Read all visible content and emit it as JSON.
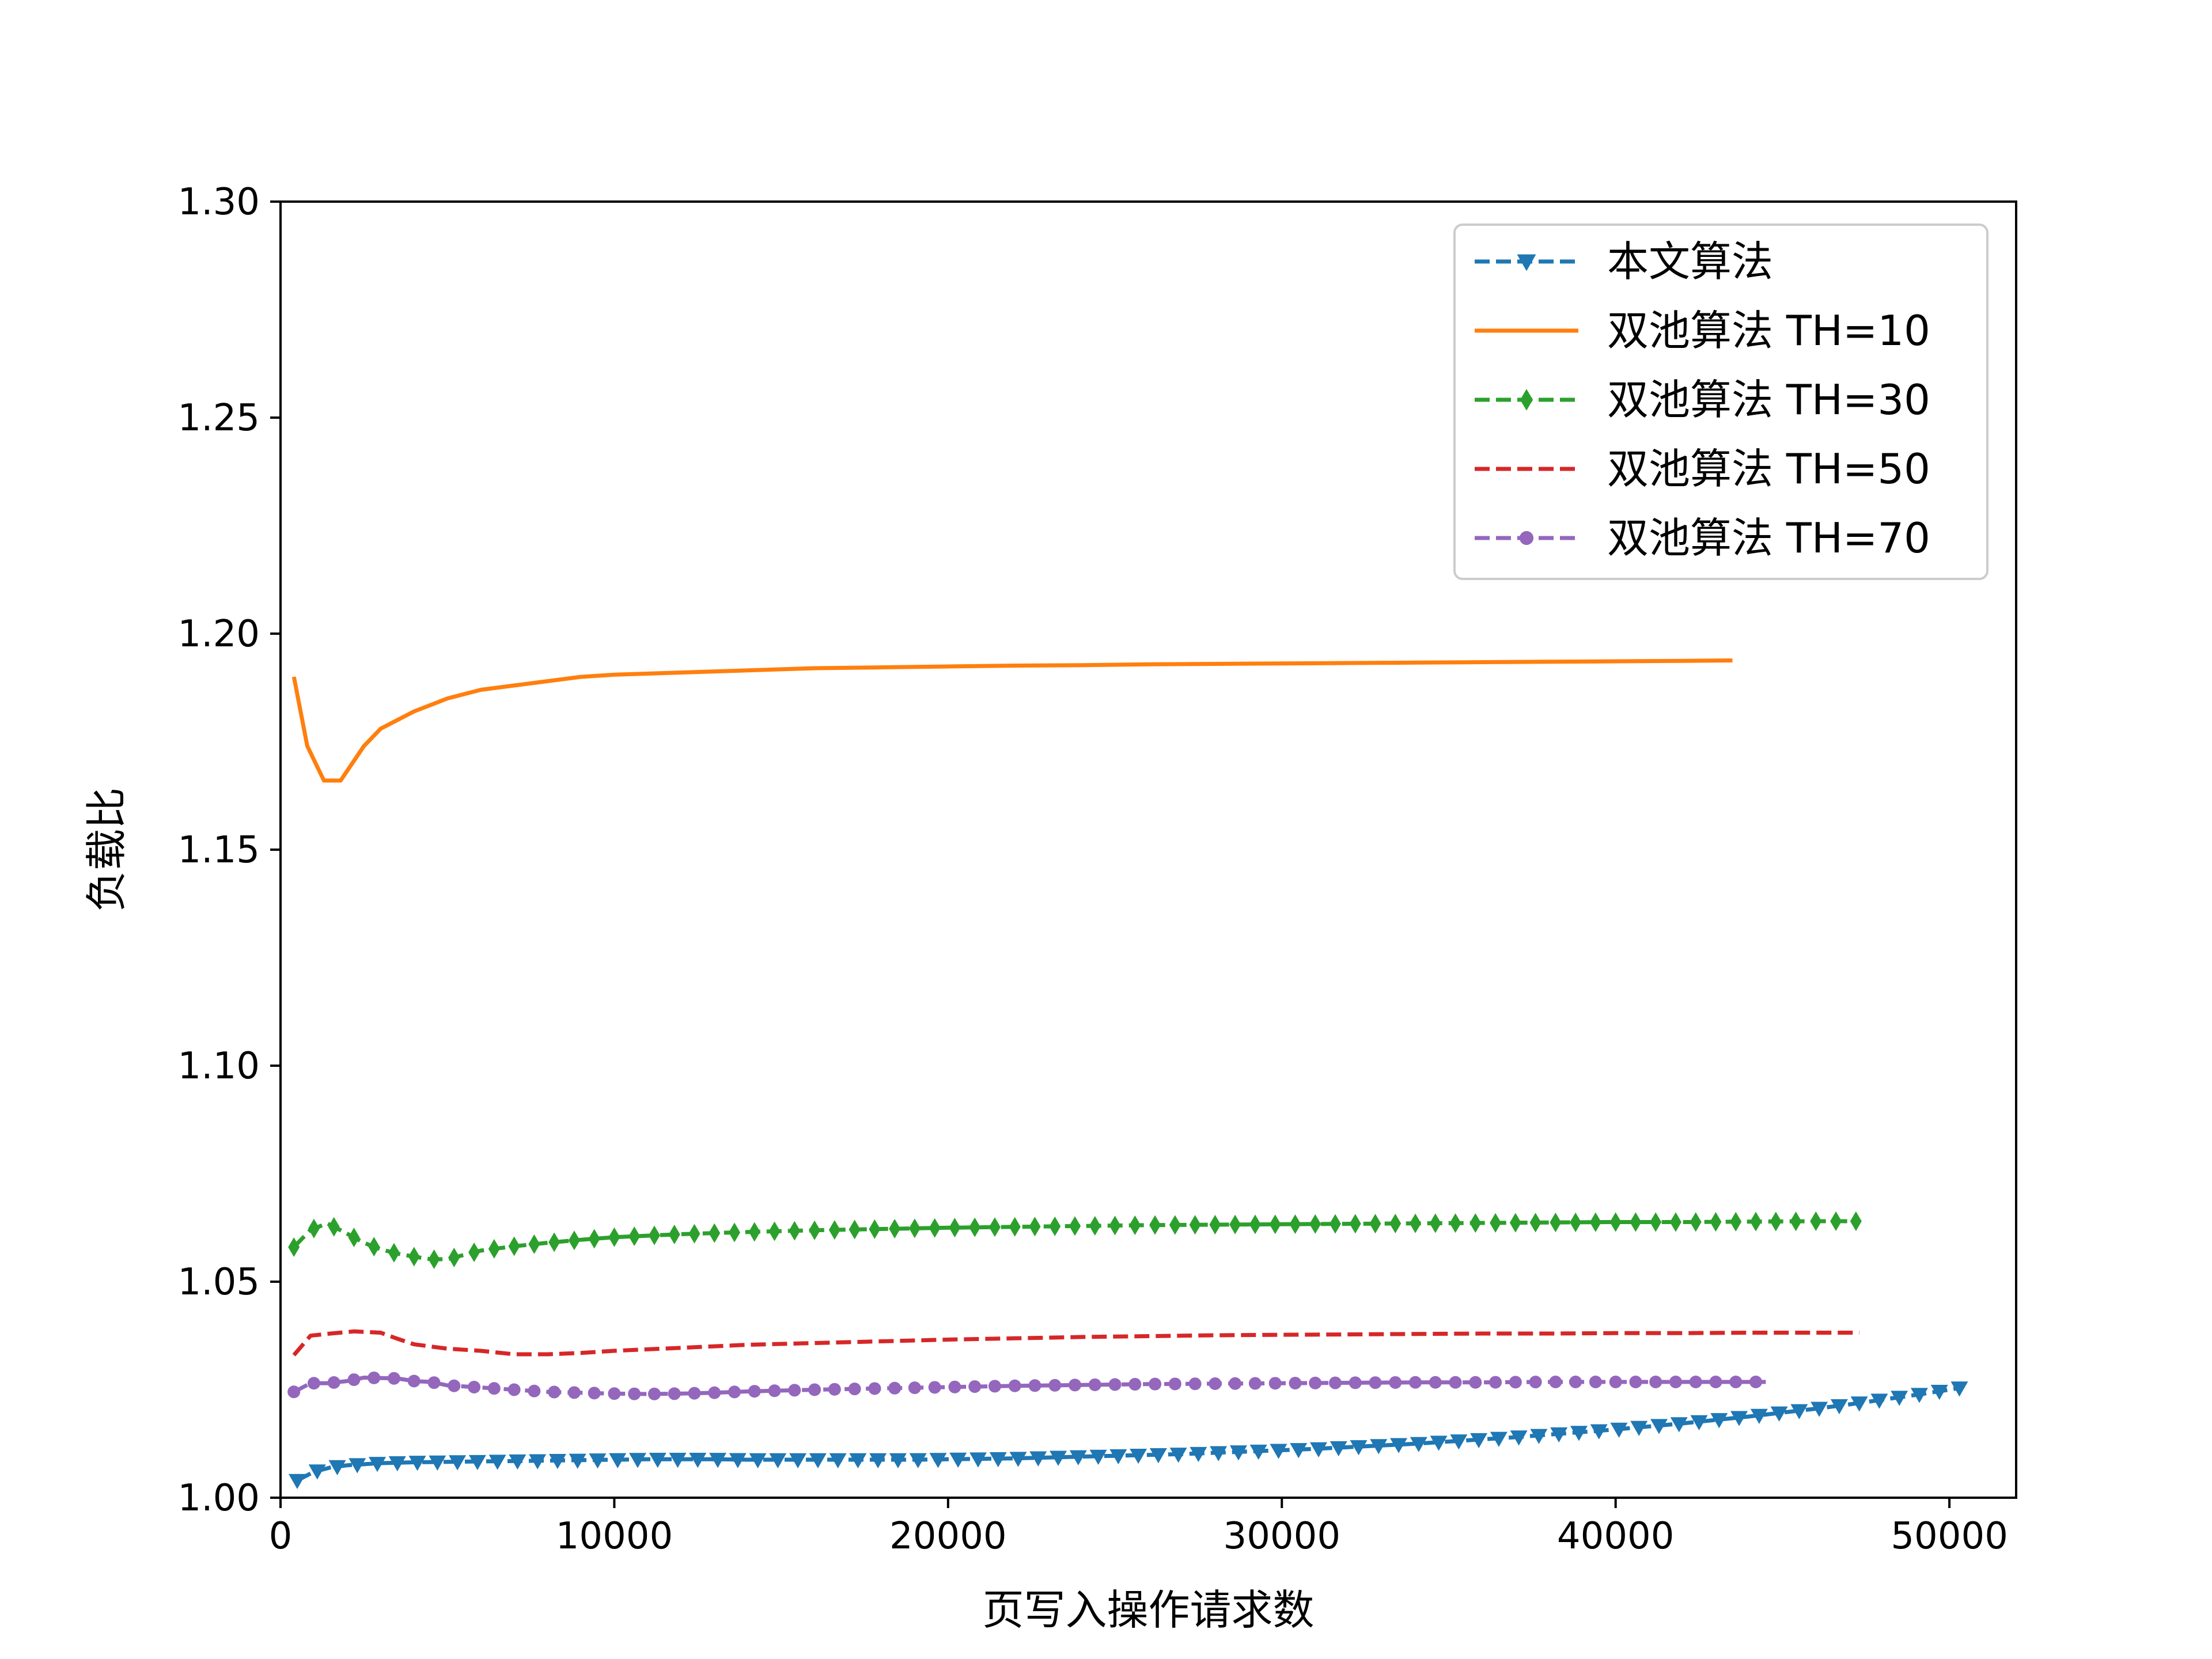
{
  "chart_data": {
    "type": "line",
    "title": "",
    "xlabel": "页写入操作请求数",
    "ylabel": "负载比",
    "xlim": [
      0,
      52000
    ],
    "ylim": [
      1.0,
      1.3
    ],
    "xticks": [
      0,
      10000,
      20000,
      30000,
      40000,
      50000
    ],
    "xtick_labels": [
      "0",
      "10000",
      "20000",
      "30000",
      "40000",
      "50000"
    ],
    "yticks": [
      1.0,
      1.05,
      1.1,
      1.15,
      1.2,
      1.25,
      1.3
    ],
    "ytick_labels": [
      "1.00",
      "1.05",
      "1.10",
      "1.15",
      "1.20",
      "1.25",
      "1.30"
    ],
    "grid": false,
    "legend_position": "top-right",
    "series": [
      {
        "name": "本文算法",
        "color": "#1f77b4",
        "dash": "dashed",
        "marker": "triangle-down",
        "x": [
          500,
          1000,
          1500,
          2000,
          3000,
          4000,
          5000,
          6000,
          7000,
          8000,
          9000,
          10000,
          11000,
          12000,
          13000,
          14000,
          15000,
          16000,
          17000,
          18000,
          19000,
          20000,
          21000,
          22000,
          23000,
          24000,
          25000,
          26000,
          27000,
          28000,
          29000,
          30000,
          31000,
          32000,
          33000,
          34000,
          35000,
          36000,
          37000,
          38000,
          39000,
          40000,
          41000,
          42000,
          43000,
          44000,
          45000,
          46000,
          47000,
          48000,
          49000,
          50000,
          50300
        ],
        "y": [
          1.004,
          1.006,
          1.007,
          1.0075,
          1.008,
          1.0082,
          1.0083,
          1.0084,
          1.0085,
          1.0086,
          1.0087,
          1.0088,
          1.0089,
          1.0089,
          1.0089,
          1.0088,
          1.0088,
          1.0088,
          1.0088,
          1.0088,
          1.0088,
          1.0089,
          1.009,
          1.0091,
          1.0093,
          1.0095,
          1.0097,
          1.0099,
          1.0101,
          1.0104,
          1.0107,
          1.011,
          1.0113,
          1.0117,
          1.0121,
          1.0125,
          1.013,
          1.0135,
          1.014,
          1.0146,
          1.0152,
          1.0158,
          1.0165,
          1.0172,
          1.018,
          1.0188,
          1.0197,
          1.0206,
          1.0216,
          1.0227,
          1.0238,
          1.025,
          1.0254
        ]
      },
      {
        "name": "双池算法 TH=10",
        "color": "#ff7f0e",
        "dash": "solid",
        "marker": "none",
        "x": [
          400,
          800,
          1300,
          1800,
          2500,
          3000,
          3500,
          4000,
          5000,
          6000,
          7000,
          8000,
          9000,
          10000,
          12000,
          14000,
          16000,
          18000,
          20000,
          22000,
          24000,
          26000,
          28000,
          30000,
          32000,
          34000,
          36000,
          38000,
          40000,
          42000,
          43500
        ],
        "y": [
          1.19,
          1.174,
          1.166,
          1.166,
          1.174,
          1.178,
          1.18,
          1.182,
          1.185,
          1.187,
          1.188,
          1.189,
          1.19,
          1.1905,
          1.191,
          1.1915,
          1.192,
          1.1922,
          1.1924,
          1.1926,
          1.1927,
          1.1929,
          1.193,
          1.1931,
          1.1932,
          1.1933,
          1.1934,
          1.1935,
          1.1936,
          1.1937,
          1.1938
        ]
      },
      {
        "name": "双池算法 TH=30",
        "color": "#2ca02c",
        "dash": "dashed",
        "marker": "thin-diamond",
        "x": [
          400,
          900,
          1400,
          1900,
          2500,
          3000,
          3500,
          4000,
          4500,
          5000,
          5500,
          6000,
          7000,
          8000,
          9000,
          10000,
          12000,
          14000,
          16000,
          18000,
          20000,
          22000,
          24000,
          26000,
          28000,
          30000,
          32000,
          34000,
          36000,
          38000,
          40000,
          42000,
          44000,
          46000,
          47300
        ],
        "y": [
          1.058,
          1.062,
          1.0635,
          1.0615,
          1.059,
          1.0575,
          1.0565,
          1.0558,
          1.0552,
          1.0552,
          1.0562,
          1.0572,
          1.0582,
          1.059,
          1.0597,
          1.0603,
          1.061,
          1.0615,
          1.0619,
          1.0622,
          1.0625,
          1.0627,
          1.0629,
          1.0631,
          1.0632,
          1.0633,
          1.0634,
          1.0635,
          1.0636,
          1.0637,
          1.0638,
          1.0638,
          1.0639,
          1.064,
          1.064
        ]
      },
      {
        "name": "双池算法 TH=50",
        "color": "#d62728",
        "dash": "dashed",
        "marker": "none",
        "x": [
          400,
          900,
          1500,
          2200,
          3000,
          3500,
          4000,
          5000,
          6000,
          7000,
          8000,
          9000,
          10000,
          12000,
          14000,
          16000,
          18000,
          20000,
          22000,
          24000,
          26000,
          28000,
          30000,
          32000,
          34000,
          36000,
          38000,
          40000,
          42000,
          44000,
          46000,
          47300
        ],
        "y": [
          1.033,
          1.0375,
          1.038,
          1.0385,
          1.0382,
          1.0368,
          1.0355,
          1.0345,
          1.034,
          1.0332,
          1.0332,
          1.0335,
          1.034,
          1.0347,
          1.0354,
          1.0358,
          1.0362,
          1.0366,
          1.0369,
          1.0372,
          1.0374,
          1.0376,
          1.0377,
          1.0378,
          1.0379,
          1.038,
          1.038,
          1.0381,
          1.0381,
          1.0382,
          1.0382,
          1.0382
        ]
      },
      {
        "name": "双池算法 TH=70",
        "color": "#9467bd",
        "dash": "dashed",
        "marker": "circle",
        "x": [
          400,
          900,
          1400,
          2000,
          2500,
          3000,
          3500,
          4000,
          4500,
          5000,
          6000,
          7000,
          8000,
          9000,
          10000,
          11000,
          12000,
          13000,
          14000,
          16000,
          18000,
          20000,
          22000,
          24000,
          26000,
          28000,
          30000,
          32000,
          34000,
          36000,
          38000,
          40000,
          42000,
          44000,
          44500
        ],
        "y": [
          1.0245,
          1.0265,
          1.0265,
          1.027,
          1.0278,
          1.0277,
          1.0276,
          1.027,
          1.0268,
          1.026,
          1.0255,
          1.025,
          1.0245,
          1.0243,
          1.0241,
          1.024,
          1.0241,
          1.0243,
          1.0246,
          1.025,
          1.0253,
          1.0256,
          1.0259,
          1.0261,
          1.0263,
          1.0264,
          1.0265,
          1.0266,
          1.0267,
          1.0267,
          1.0268,
          1.0268,
          1.0268,
          1.0268,
          1.0268
        ]
      }
    ]
  }
}
